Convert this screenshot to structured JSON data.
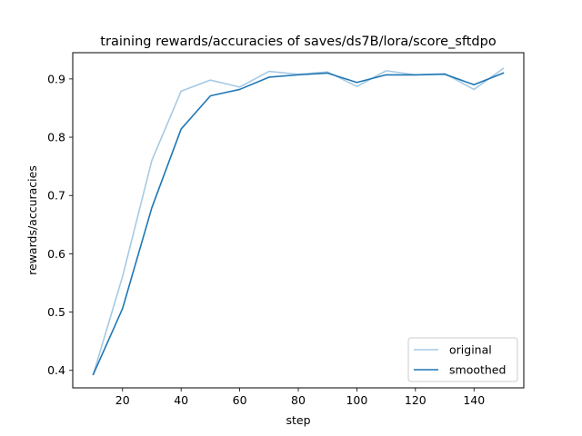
{
  "chart_data": {
    "type": "line",
    "title": "training rewards/accuracies of saves/ds7B/lora/score_sftdpo",
    "xlabel": "step",
    "ylabel": "rewards/accuracies",
    "xlim": [
      3,
      157
    ],
    "ylim": [
      0.37,
      0.945
    ],
    "xticks": [
      20,
      40,
      60,
      80,
      100,
      120,
      140
    ],
    "xtick_labels": [
      "20",
      "40",
      "60",
      "80",
      "100",
      "120",
      "140"
    ],
    "yticks": [
      0.4,
      0.5,
      0.6,
      0.7,
      0.8,
      0.9
    ],
    "ytick_labels": [
      "0.4",
      "0.5",
      "0.6",
      "0.7",
      "0.8",
      "0.9"
    ],
    "grid": false,
    "legend_position": "lower-right",
    "series": [
      {
        "name": "original",
        "color": "#a6cae3",
        "x": [
          10,
          20,
          30,
          40,
          50,
          60,
          70,
          80,
          90,
          100,
          110,
          120,
          130,
          140,
          150
        ],
        "y": [
          0.393,
          0.561,
          0.76,
          0.879,
          0.898,
          0.886,
          0.913,
          0.908,
          0.912,
          0.887,
          0.914,
          0.907,
          0.909,
          0.882,
          0.918
        ]
      },
      {
        "name": "smoothed",
        "color": "#1f77b4",
        "x": [
          10,
          20,
          30,
          40,
          50,
          60,
          70,
          80,
          90,
          100,
          110,
          120,
          130,
          140,
          150
        ],
        "y": [
          0.393,
          0.506,
          0.679,
          0.814,
          0.871,
          0.882,
          0.903,
          0.907,
          0.91,
          0.894,
          0.907,
          0.907,
          0.908,
          0.89,
          0.91
        ]
      }
    ]
  }
}
